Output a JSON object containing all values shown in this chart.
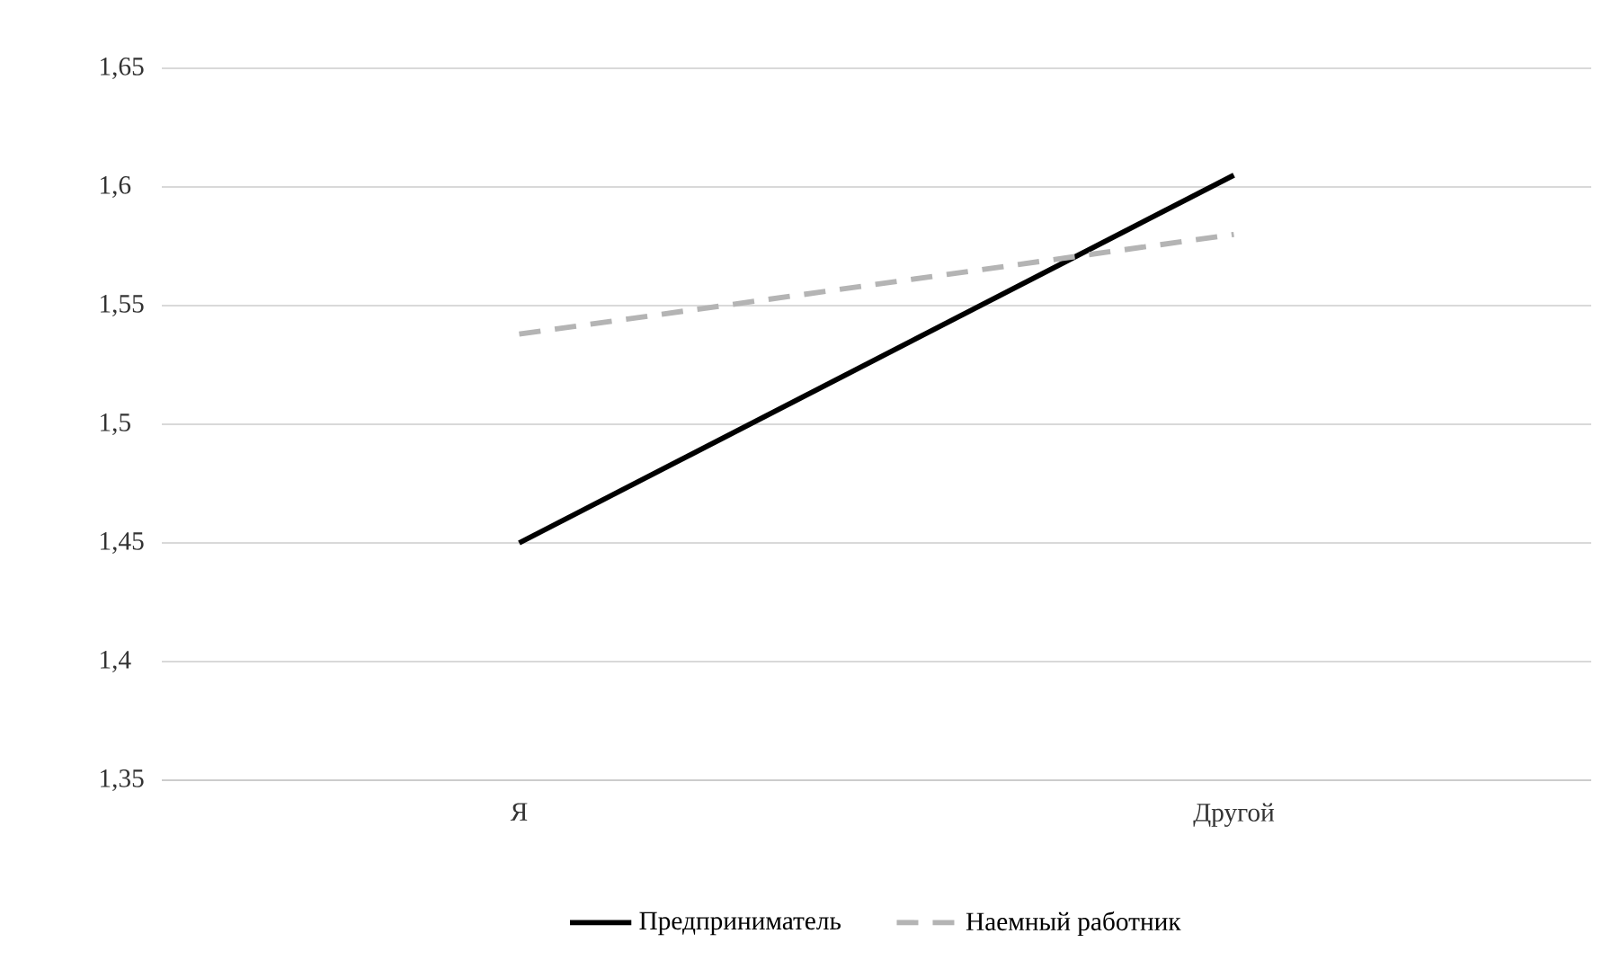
{
  "chart_data": {
    "type": "line",
    "categories": [
      "Я",
      "Другой"
    ],
    "series": [
      {
        "name": "Предприниматель",
        "color": "#000000",
        "line_style": "solid",
        "values": [
          1.45,
          1.605
        ]
      },
      {
        "name": "Наемный работник",
        "color": "#b4b4b4",
        "line_style": "dashed",
        "values": [
          1.538,
          1.58
        ]
      }
    ],
    "ylim": [
      1.35,
      1.65
    ],
    "yticks": [
      {
        "value": 1.35,
        "label": "1,35"
      },
      {
        "value": 1.4,
        "label": "1,4"
      },
      {
        "value": 1.45,
        "label": "1,45"
      },
      {
        "value": 1.5,
        "label": "1,5"
      },
      {
        "value": 1.55,
        "label": "1,55"
      },
      {
        "value": 1.6,
        "label": "1,6"
      },
      {
        "value": 1.65,
        "label": "1,65"
      }
    ],
    "grid": "y",
    "legend": "bottom",
    "marker": "none"
  }
}
